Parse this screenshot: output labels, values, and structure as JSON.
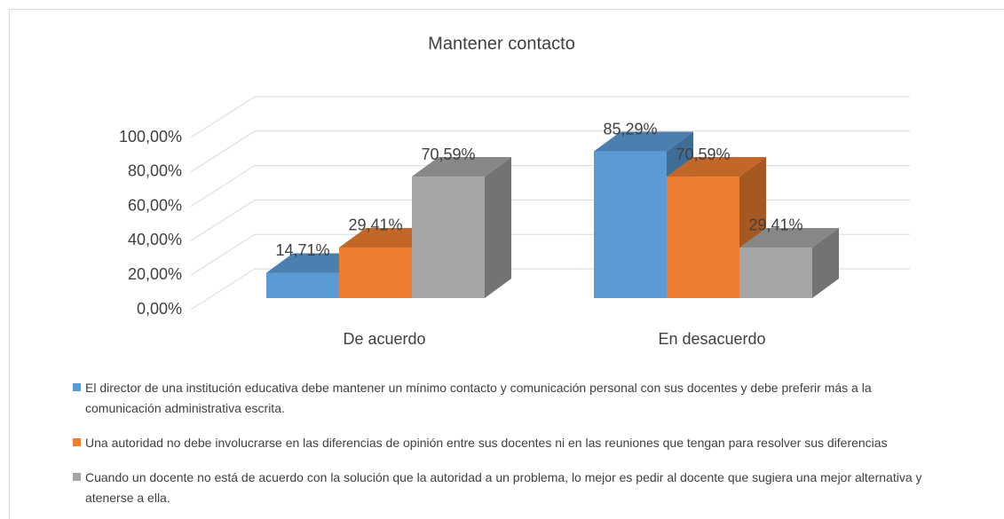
{
  "chart_data": {
    "type": "bar3d",
    "title": "Mantener  contacto",
    "categories": [
      "De acuerdo",
      "En desacuerdo"
    ],
    "series": [
      {
        "name": "El director de una institución educativa debe mantener un mínimo contacto y comunicación personal con sus docentes y debe preferir más a la comunicación administrativa escrita.",
        "color": "#5b9bd5",
        "values": [
          14.71,
          85.29
        ],
        "value_labels": [
          "14,71%",
          "85,29%"
        ]
      },
      {
        "name": "Una autoridad no debe involucrarse en las diferencias de opinión entre sus docentes ni en las reuniones que tengan para resolver sus diferencias",
        "color": "#ed7d31",
        "values": [
          29.41,
          70.59
        ],
        "value_labels": [
          "29,41%",
          "70,59%"
        ]
      },
      {
        "name": "Cuando un docente no está de acuerdo con la solución que la autoridad a un problema, lo mejor es pedir al docente que sugiera una mejor alternativa y atenerse a ella.",
        "color": "#a5a5a5",
        "values": [
          70.59,
          29.41
        ],
        "value_labels": [
          "70,59%",
          "29,41%"
        ]
      }
    ],
    "ylim": [
      0,
      100
    ],
    "yticks": [
      {
        "value": 0,
        "label": "0,00%"
      },
      {
        "value": 20,
        "label": "20,00%"
      },
      {
        "value": 40,
        "label": "40,00%"
      },
      {
        "value": 60,
        "label": "60,00%"
      },
      {
        "value": 80,
        "label": "80,00%"
      },
      {
        "value": 100,
        "label": "100,00%"
      }
    ],
    "grid": true,
    "legend": "bottom"
  }
}
